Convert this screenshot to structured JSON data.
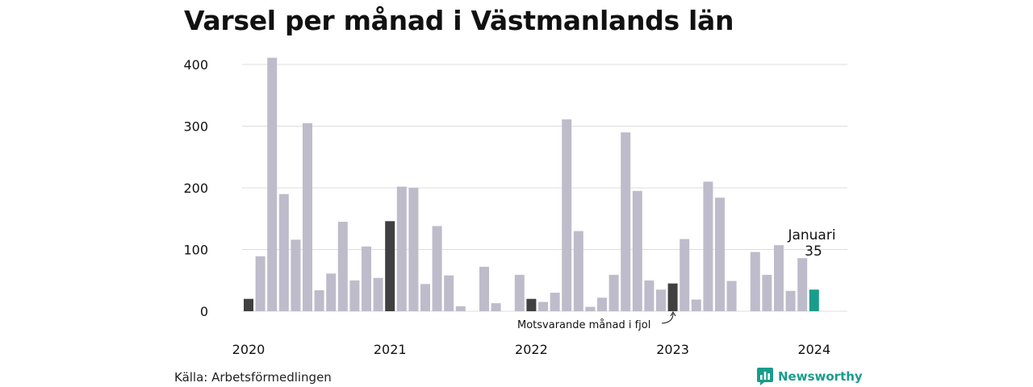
{
  "header": {
    "title": "Varsel per månad i Västmanlands län"
  },
  "footer": {
    "source": "Källa: Arbetsförmedlingen",
    "brand": "Newsworthy"
  },
  "annotation": {
    "month_label": "Januari",
    "value_label": "35",
    "compare_label": "Motsvarande månad i fjol"
  },
  "colors": {
    "default": "#bebcca",
    "highlight_prev": "#404040",
    "current": "#1a9c8c",
    "grid": "#dddddd"
  },
  "chart_data": {
    "type": "bar",
    "title": "Varsel per månad i Västmanlands län",
    "xlabel": "",
    "ylabel": "",
    "ylim": [
      0,
      420
    ],
    "yticks": [
      0,
      100,
      200,
      300,
      400
    ],
    "xtick_labels": [
      "2020",
      "2021",
      "2022",
      "2023",
      "2024"
    ],
    "grid": true,
    "categories": [
      "2020-01",
      "2020-02",
      "2020-03",
      "2020-04",
      "2020-05",
      "2020-06",
      "2020-07",
      "2020-08",
      "2020-09",
      "2020-10",
      "2020-11",
      "2020-12",
      "2021-01",
      "2021-02",
      "2021-03",
      "2021-04",
      "2021-05",
      "2021-06",
      "2021-07",
      "2021-08",
      "2021-09",
      "2021-10",
      "2021-11",
      "2021-12",
      "2022-01",
      "2022-02",
      "2022-03",
      "2022-04",
      "2022-05",
      "2022-06",
      "2022-07",
      "2022-08",
      "2022-09",
      "2022-10",
      "2022-11",
      "2022-12",
      "2023-01",
      "2023-02",
      "2023-03",
      "2023-04",
      "2023-05",
      "2023-06",
      "2023-07",
      "2023-08",
      "2023-09",
      "2023-10",
      "2023-11",
      "2023-12",
      "2024-01"
    ],
    "values": [
      20,
      89,
      411,
      190,
      116,
      305,
      34,
      61,
      145,
      50,
      105,
      54,
      146,
      202,
      200,
      44,
      138,
      58,
      8,
      0,
      72,
      13,
      0,
      59,
      20,
      15,
      30,
      311,
      130,
      7,
      22,
      59,
      290,
      195,
      50,
      35,
      45,
      117,
      19,
      210,
      184,
      49,
      0,
      96,
      59,
      107,
      33,
      86,
      35
    ],
    "highlighted": [
      "2020-01",
      "2021-01",
      "2022-01",
      "2023-01"
    ],
    "current": "2024-01"
  }
}
